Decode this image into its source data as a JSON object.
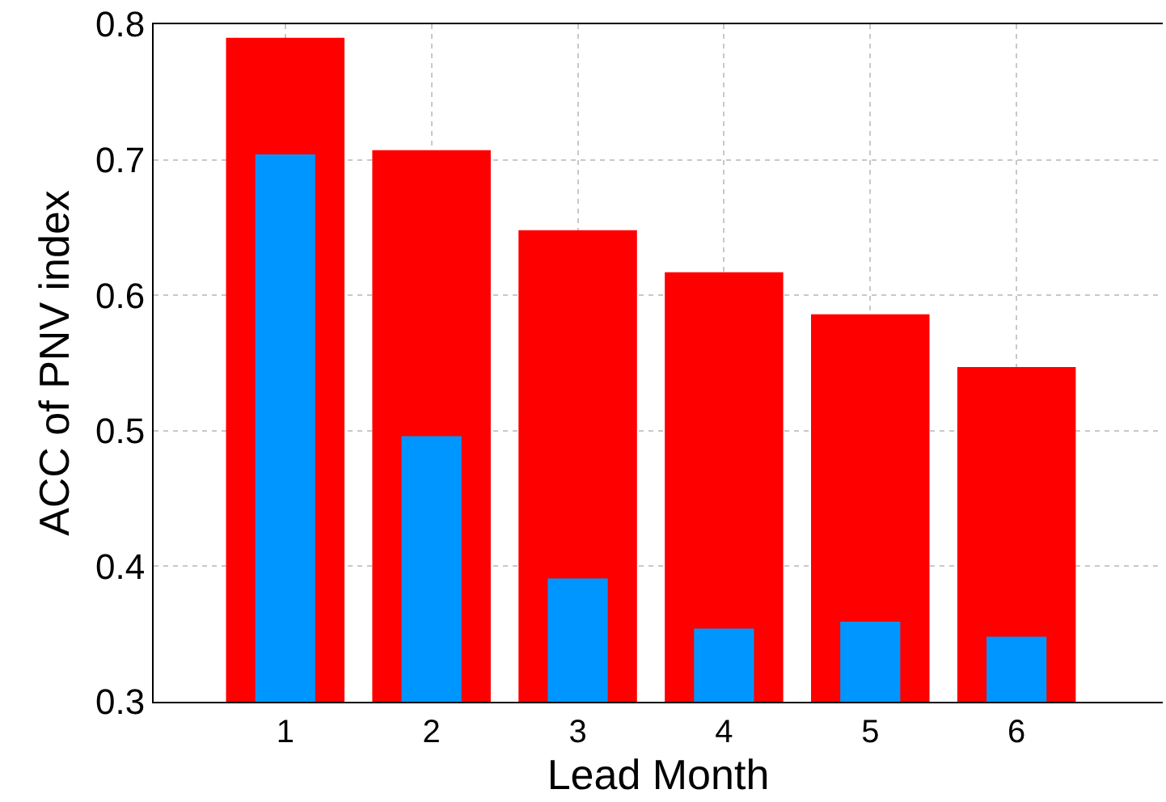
{
  "chart_data": {
    "type": "bar",
    "xlabel": "Lead Month",
    "ylabel": "ACC of PNV index",
    "x": [
      1,
      2,
      3,
      4,
      5,
      6
    ],
    "series": [
      {
        "color": "#ff0000",
        "values": [
          0.79,
          0.707,
          0.648,
          0.617,
          0.586,
          0.547
        ]
      },
      {
        "color": "#0096ff",
        "values": [
          0.704,
          0.496,
          0.391,
          0.354,
          0.359,
          0.348
        ]
      }
    ],
    "xlim": [
      0.1,
      7
    ],
    "xticks": [
      1,
      2,
      3,
      4,
      5,
      6
    ],
    "ylim": [
      0.3,
      0.8
    ],
    "yticks": [
      0.3,
      0.4,
      0.5,
      0.6,
      0.7,
      0.8
    ],
    "grid": true
  }
}
